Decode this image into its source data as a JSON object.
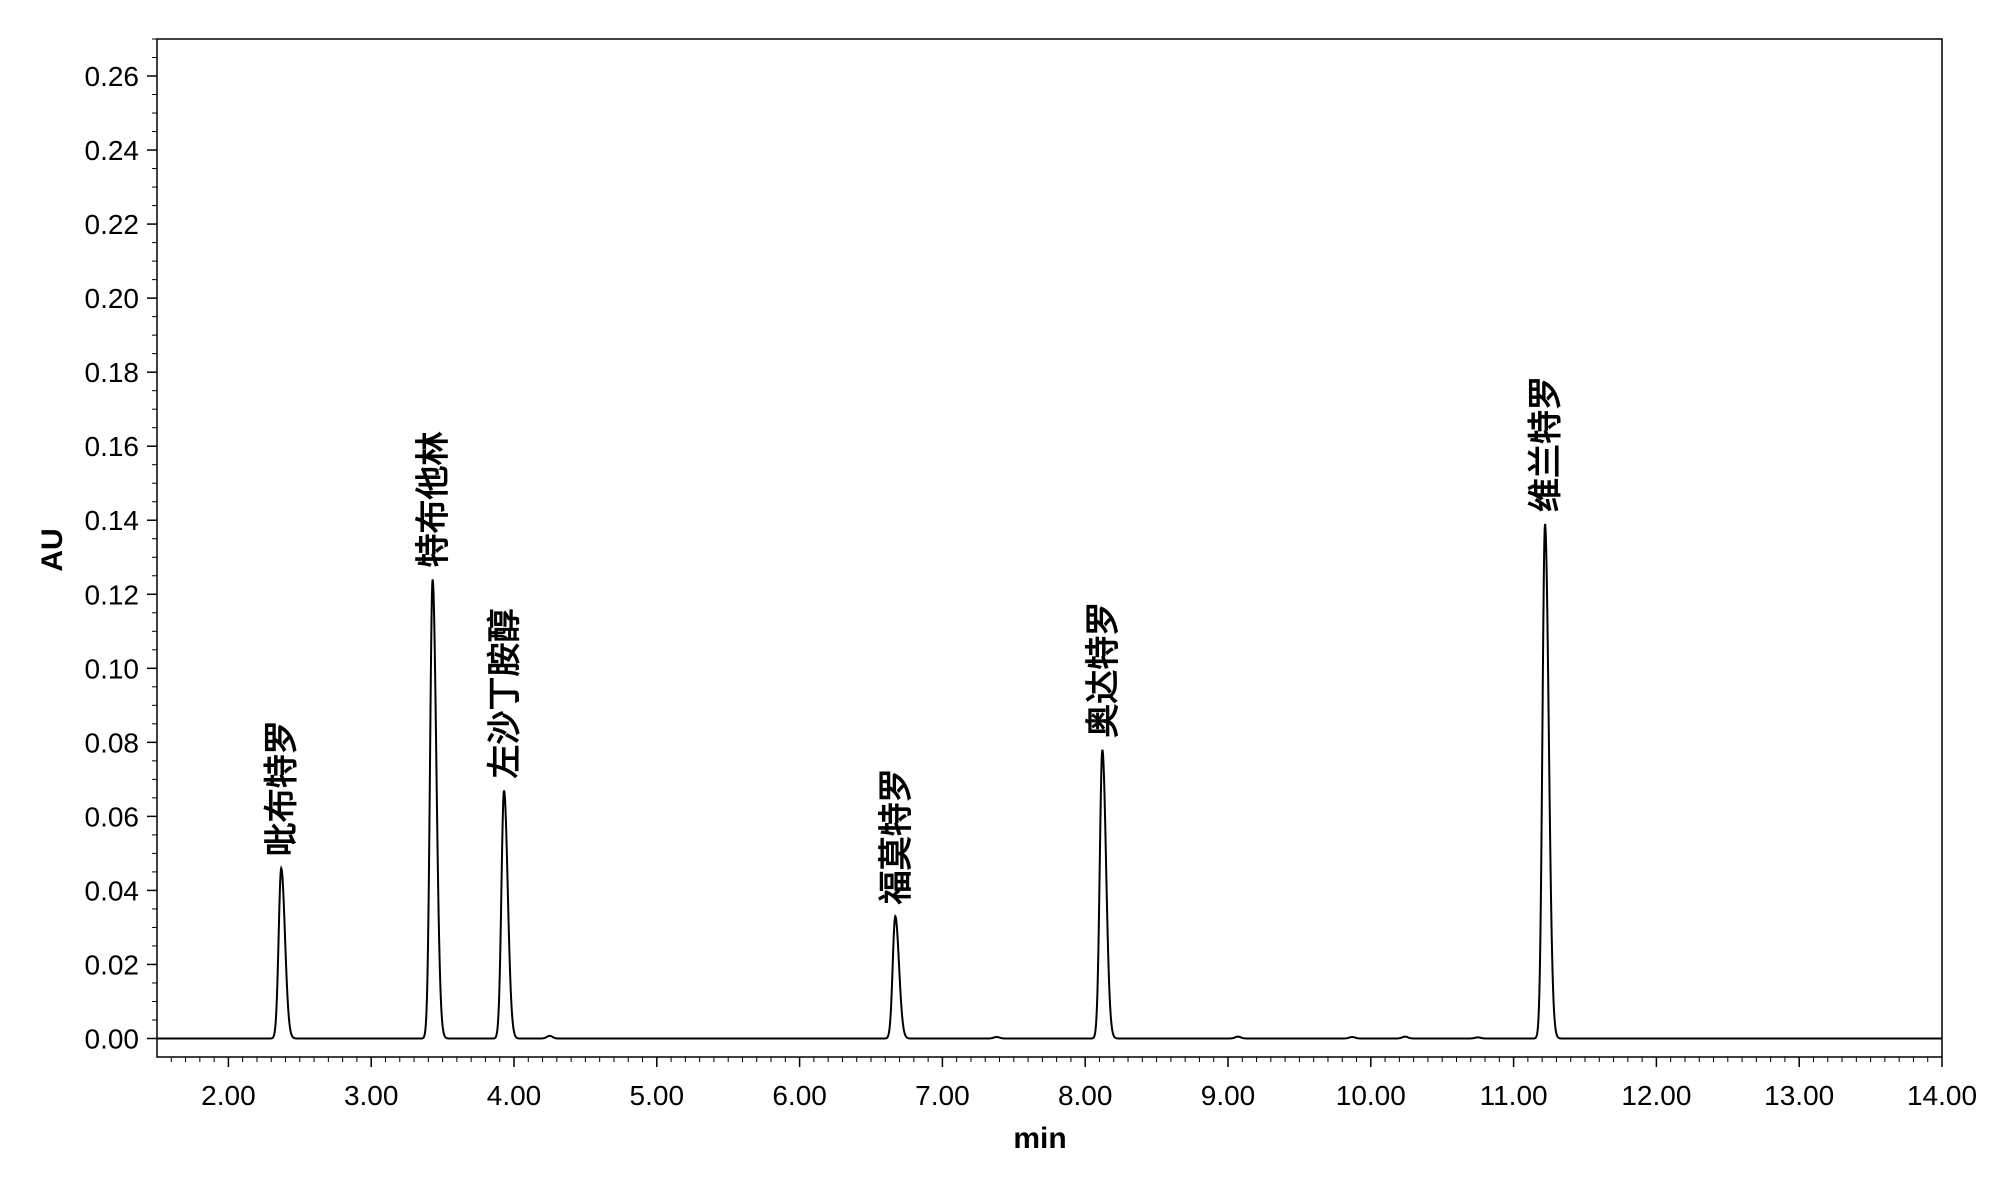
{
  "chart_data": {
    "type": "line",
    "xlabel": "min",
    "ylabel": "AU",
    "xlim": [
      1.5,
      14.0
    ],
    "ylim": [
      -0.005,
      0.27
    ],
    "x_ticks": [
      "2.00",
      "3.00",
      "4.00",
      "5.00",
      "6.00",
      "7.00",
      "8.00",
      "9.00",
      "10.00",
      "11.00",
      "12.00",
      "13.00",
      "14.00"
    ],
    "y_ticks": [
      "0.00",
      "0.02",
      "0.04",
      "0.06",
      "0.08",
      "0.10",
      "0.12",
      "0.14",
      "0.16",
      "0.18",
      "0.20",
      "0.22",
      "0.24",
      "0.26"
    ],
    "grid": false,
    "line_color": "#000000",
    "peaks": [
      {
        "label": "吡布特罗",
        "x": 2.37,
        "y": 0.046
      },
      {
        "label": "特布他林",
        "x": 3.43,
        "y": 0.124
      },
      {
        "label": "左沙丁胺醇",
        "x": 3.93,
        "y": 0.067
      },
      {
        "label": "福莫特罗",
        "x": 6.67,
        "y": 0.033
      },
      {
        "label": "奥达特罗",
        "x": 8.12,
        "y": 0.078
      },
      {
        "label": "维兰特罗",
        "x": 11.22,
        "y": 0.139
      }
    ]
  }
}
